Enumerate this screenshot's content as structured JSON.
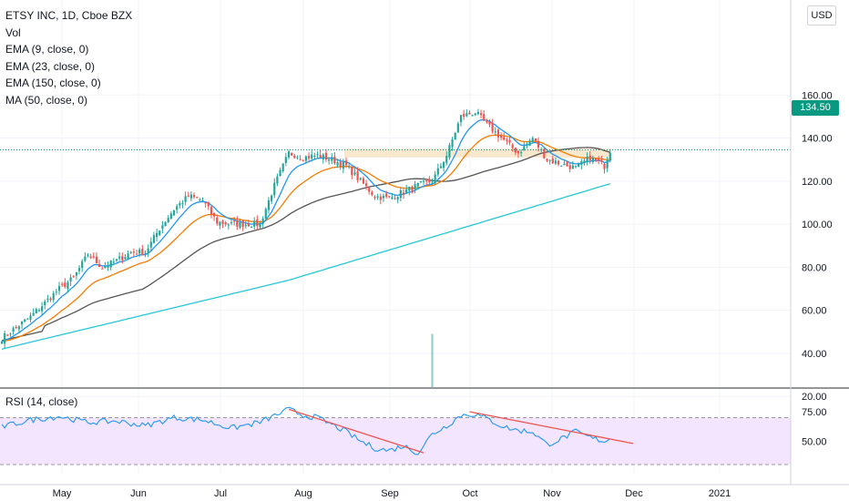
{
  "legend": {
    "title": "ETSY INC, 1D, Cboe BZX",
    "vol": "Vol",
    "ema9": "EMA (9, close, 0)",
    "ema23": "EMA (23, close, 0)",
    "ema150": "EMA (150, close, 0)",
    "ma50": "MA (50, close, 0)"
  },
  "rsi_legend": "RSI (14, close)",
  "currency": "USD",
  "last_price_label": "134.50",
  "colors": {
    "up": "#26a69a",
    "down": "#ef5350",
    "ema9": "#2196f3",
    "ema23": "#f57c00",
    "ema150": "#26c6da",
    "ma50": "#555555",
    "rsi_line": "#2196f3",
    "rsi_band": "#f3e5fd",
    "trendline": "#ef5350",
    "resistance_zone": "#f8e3c6",
    "price_line": "#089981"
  },
  "chart_data": {
    "type": "candlestick",
    "symbol": "ETSY INC",
    "interval": "1D",
    "exchange": "Cboe BZX",
    "last_price": 134.5,
    "price_axis": {
      "ticks": [
        "160.00",
        "140.00",
        "120.00",
        "100.00",
        "80.00",
        "60.00",
        "40.00",
        "20.00"
      ],
      "range": [
        5,
        180
      ]
    },
    "rsi_axis": {
      "ticks": [
        "75.00",
        "50.00"
      ],
      "overbought": 70,
      "oversold": 30,
      "range": [
        25,
        80
      ]
    },
    "x_axis": {
      "ticks": [
        "May",
        "Jun",
        "Jul",
        "Aug",
        "Sep",
        "Oct",
        "Nov",
        "Dec",
        "2021"
      ]
    },
    "resistance_zone": [
      131,
      135
    ],
    "price_anchors": [
      [
        0,
        47
      ],
      [
        10,
        57
      ],
      [
        20,
        70
      ],
      [
        25,
        75
      ],
      [
        30,
        86
      ],
      [
        35,
        80
      ],
      [
        40,
        83
      ],
      [
        45,
        87
      ],
      [
        50,
        87
      ],
      [
        55,
        98
      ],
      [
        60,
        107
      ],
      [
        65,
        113
      ],
      [
        70,
        111
      ],
      [
        75,
        101
      ],
      [
        80,
        100
      ],
      [
        85,
        100
      ],
      [
        90,
        100
      ],
      [
        95,
        118
      ],
      [
        100,
        133
      ],
      [
        105,
        131
      ],
      [
        110,
        132
      ],
      [
        115,
        130
      ],
      [
        120,
        127
      ],
      [
        125,
        120
      ],
      [
        130,
        113
      ],
      [
        135,
        112
      ],
      [
        140,
        115
      ],
      [
        145,
        118
      ],
      [
        150,
        120
      ],
      [
        155,
        132
      ],
      [
        160,
        150
      ],
      [
        165,
        152
      ],
      [
        170,
        145
      ],
      [
        175,
        139
      ],
      [
        180,
        133
      ],
      [
        185,
        140
      ],
      [
        190,
        130
      ],
      [
        195,
        128
      ],
      [
        200,
        126
      ],
      [
        205,
        131
      ],
      [
        210,
        127
      ],
      [
        212,
        134.5
      ]
    ],
    "rsi_anchors": [
      [
        0,
        62
      ],
      [
        10,
        68
      ],
      [
        20,
        71
      ],
      [
        30,
        66
      ],
      [
        40,
        67
      ],
      [
        50,
        63
      ],
      [
        60,
        70
      ],
      [
        70,
        68
      ],
      [
        80,
        61
      ],
      [
        90,
        66
      ],
      [
        100,
        77
      ],
      [
        105,
        72
      ],
      [
        110,
        70
      ],
      [
        115,
        64
      ],
      [
        120,
        58
      ],
      [
        125,
        50
      ],
      [
        130,
        44
      ],
      [
        135,
        42
      ],
      [
        140,
        46
      ],
      [
        145,
        40
      ],
      [
        150,
        56
      ],
      [
        155,
        63
      ],
      [
        160,
        72
      ],
      [
        165,
        73
      ],
      [
        170,
        68
      ],
      [
        175,
        62
      ],
      [
        180,
        59
      ],
      [
        185,
        58
      ],
      [
        190,
        47
      ],
      [
        195,
        52
      ],
      [
        200,
        58
      ],
      [
        205,
        53
      ],
      [
        210,
        50
      ],
      [
        212,
        52
      ]
    ],
    "volume_spike": {
      "index": 150,
      "value": 49
    },
    "rsi_trendlines": [
      {
        "from": [
          100,
          77
        ],
        "to": [
          147,
          40
        ]
      },
      {
        "from": [
          163,
          75
        ],
        "to": [
          220,
          48
        ]
      }
    ]
  }
}
